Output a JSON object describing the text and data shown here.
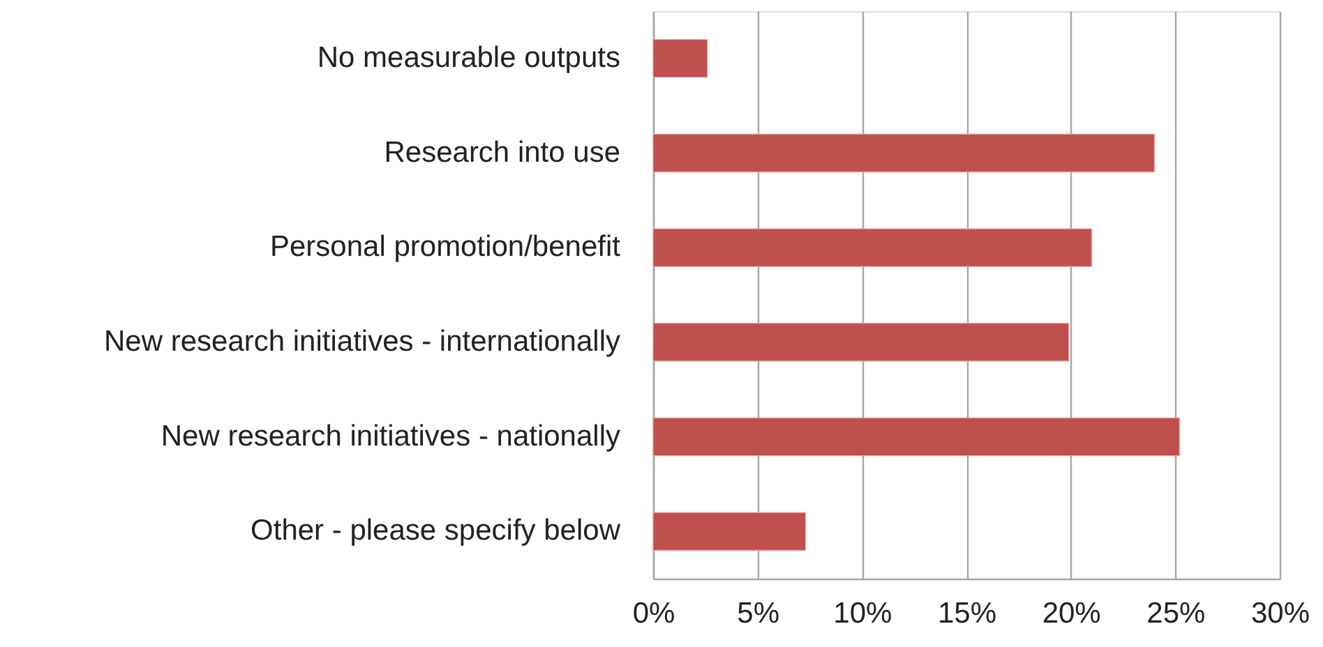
{
  "chart_data": {
    "type": "bar",
    "orientation": "horizontal",
    "categories": [
      "No measurable outputs",
      "Research into use",
      "Personal promotion/benefit",
      "New research initiatives - internationally",
      "New research initiatives - nationally",
      "Other - please specify below"
    ],
    "values": [
      2.6,
      24.0,
      21.0,
      19.9,
      25.2,
      7.3
    ],
    "color": "#c0504d",
    "xlim": [
      0,
      30
    ],
    "xticks": [
      {
        "value": 0,
        "label": "0%"
      },
      {
        "value": 5,
        "label": "5%"
      },
      {
        "value": 10,
        "label": "10%"
      },
      {
        "value": 15,
        "label": "15%"
      },
      {
        "value": 20,
        "label": "20%"
      },
      {
        "value": 25,
        "label": "25%"
      },
      {
        "value": 30,
        "label": "30%"
      }
    ],
    "grid": "x"
  }
}
